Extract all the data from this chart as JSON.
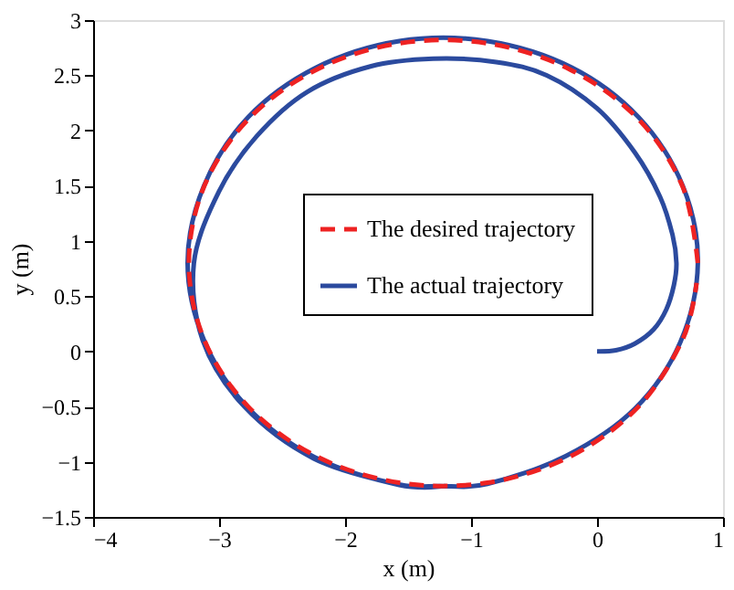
{
  "chart_data": {
    "type": "line",
    "xlabel": "x (m)",
    "ylabel": "y (m)",
    "xlim": [
      -4,
      1
    ],
    "ylim": [
      -1.5,
      3
    ],
    "xticks": [
      -4,
      -3,
      -2,
      -1,
      0,
      1
    ],
    "yticks": [
      -1.5,
      -1,
      -0.5,
      0,
      0.5,
      1,
      1.5,
      2,
      2.5,
      3
    ],
    "grid": false,
    "legend": "center",
    "marker": "none",
    "series": [
      {
        "name": "The actual trajectory",
        "color": "#2b4a9e",
        "line_style": "solid",
        "x": [
          0,
          0.15,
          0.3,
          0.45,
          0.55,
          0.61,
          0.63,
          0.6,
          0.5,
          0.3,
          0,
          -0.4,
          -0.8,
          -1.3,
          -1.8,
          -2.3,
          -2.7,
          -3.0,
          -3.2,
          -3.13,
          -2.8,
          -2.25,
          -1.6,
          -1.25,
          -0.87,
          -0.25,
          0.3,
          0.66,
          0.8,
          0.68,
          0.33,
          -0.2,
          -0.87,
          -1.57,
          -2.23,
          -2.77,
          -3.12,
          -3.25,
          -3.12,
          -2.78,
          -2.24,
          -1.57,
          -1.2
        ],
        "values": [
          0,
          0.01,
          0.07,
          0.2,
          0.38,
          0.6,
          0.8,
          1.05,
          1.4,
          1.8,
          2.2,
          2.5,
          2.62,
          2.65,
          2.58,
          2.35,
          1.95,
          1.45,
          0.8,
          0.1,
          -0.5,
          -0.97,
          -1.2,
          -1.22,
          -1.2,
          -0.95,
          -0.52,
          0.08,
          0.8,
          1.5,
          2.12,
          2.57,
          2.81,
          2.81,
          2.57,
          2.12,
          1.5,
          0.8,
          0.1,
          -0.5,
          -0.96,
          -1.21,
          -1.22
        ]
      },
      {
        "name": "The desired trajectory",
        "color": "#ee2222",
        "line_style": "dashed",
        "x": [
          0.8,
          0.68,
          0.33,
          -0.21,
          -0.87,
          -1.57,
          -2.23,
          -2.77,
          -3.12,
          -3.24,
          -3.12,
          -2.77,
          -2.23,
          -1.57,
          -0.87,
          -0.21,
          0.33,
          0.68,
          0.79
        ],
        "values": [
          0.8,
          1.49,
          2.1,
          2.55,
          2.79,
          2.79,
          2.55,
          2.1,
          1.49,
          0.8,
          0.11,
          -0.5,
          -0.95,
          -1.19,
          -1.19,
          -0.95,
          -0.5,
          0.11,
          0.62
        ]
      }
    ]
  }
}
